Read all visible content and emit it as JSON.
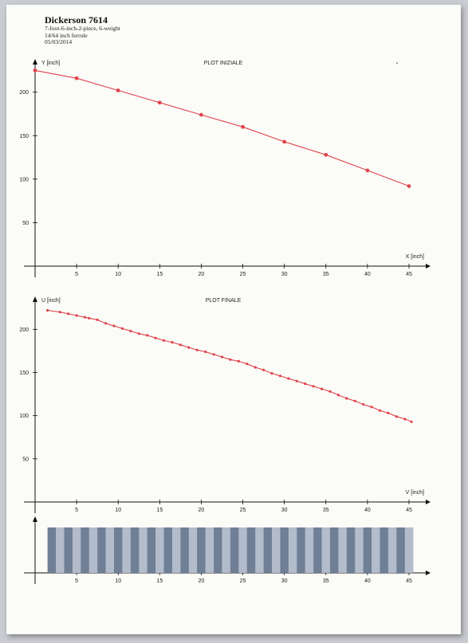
{
  "header": {
    "title": "Dickerson 7614",
    "line1": "7-foot-6-inch-2-piece, 6-weight",
    "line2": "14/64 inch ferrule",
    "line3": "05/03/2014"
  },
  "colors": {
    "curve": "#e0444c",
    "band_dark": "#6f7f95",
    "band_light": "#b3bccb"
  },
  "chart_data": [
    {
      "type": "line",
      "title": "PLOT INIZIALE",
      "xlabel": "X [inch]",
      "ylabel": "Y [inch]",
      "xlim": [
        0,
        48
      ],
      "ylim": [
        0,
        240
      ],
      "x_ticks": [
        5,
        10,
        15,
        20,
        25,
        30,
        35,
        40,
        45
      ],
      "y_ticks": [
        50,
        100,
        150,
        200
      ],
      "grid": false,
      "series": [
        {
          "x": [
            0,
            5,
            10,
            15,
            20,
            25,
            30,
            35,
            40,
            45
          ],
          "y": [
            225,
            216,
            202,
            188,
            174,
            160,
            143,
            128,
            110,
            92
          ]
        }
      ]
    },
    {
      "type": "line",
      "title": "PLOT FINALE",
      "xlabel": "V [inch]",
      "ylabel": "U [inch]",
      "xlim": [
        0,
        48
      ],
      "ylim": [
        0,
        240
      ],
      "x_ticks": [
        5,
        10,
        15,
        20,
        25,
        30,
        35,
        40,
        45
      ],
      "y_ticks": [
        50,
        100,
        150,
        200
      ],
      "grid": false,
      "series": [
        {
          "x": [
            1.5,
            3,
            4,
            5,
            6,
            6.5,
            7.5,
            8.5,
            9.5,
            10.5,
            11.5,
            12.5,
            13.5,
            14.5,
            15.5,
            16.5,
            17.5,
            18.5,
            19.5,
            20.5,
            21.5,
            22.5,
            23.5,
            24.5,
            25.5,
            26.5,
            27.5,
            28.5,
            29.5,
            30.5,
            31.5,
            32.5,
            33.5,
            34.5,
            35.5,
            36.5,
            37.5,
            38.5,
            39.5,
            40.5,
            41.5,
            42.5,
            43.5,
            44.5,
            45.3
          ],
          "y": [
            222,
            220,
            218,
            216,
            214,
            213,
            211,
            207,
            204,
            201,
            198,
            195,
            193,
            190,
            187,
            185,
            182,
            179,
            176,
            174,
            171,
            168,
            165,
            163,
            160,
            156,
            153,
            149,
            146,
            143,
            140,
            137,
            134,
            131,
            128,
            124,
            120,
            117,
            113,
            110,
            106,
            103,
            99,
            96,
            93
          ]
        }
      ]
    },
    {
      "type": "bar",
      "title": "",
      "x_ticks": [
        5,
        10,
        15,
        20,
        25,
        30,
        35,
        40,
        45
      ],
      "xlim": [
        0,
        48
      ],
      "band_start": 1.5,
      "band_end": 45.5,
      "segments": 44
    }
  ]
}
